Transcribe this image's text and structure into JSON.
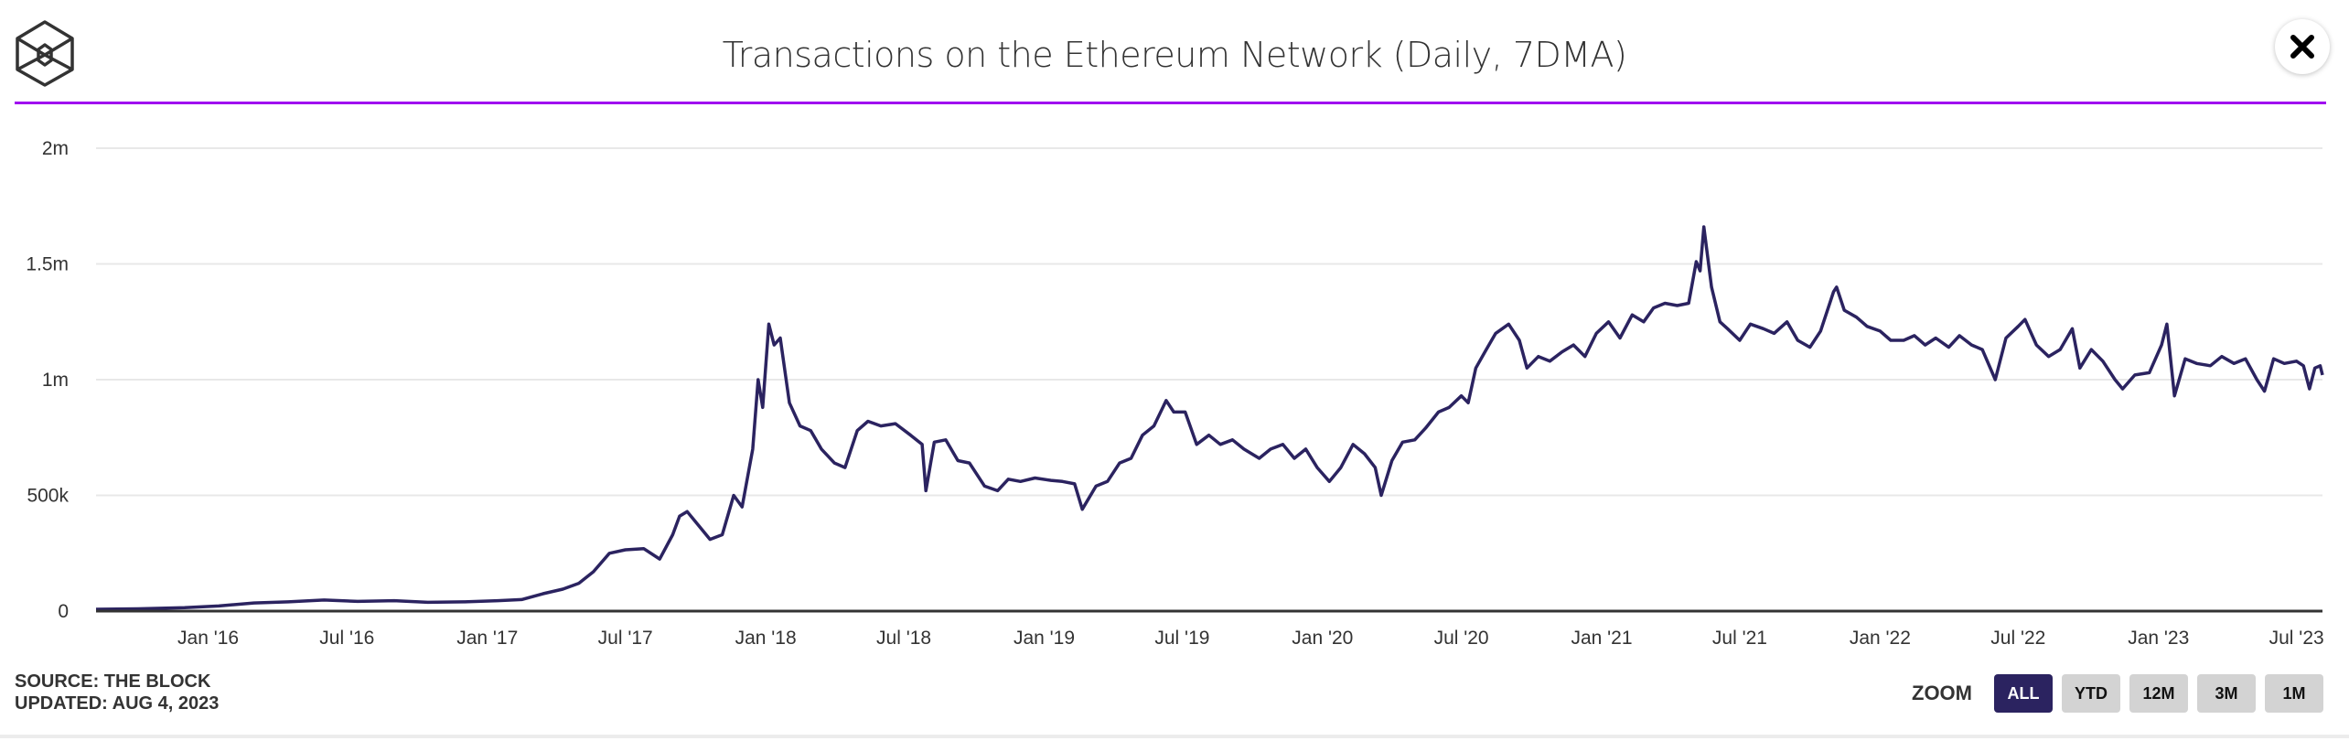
{
  "header": {
    "title": "Transactions on the Ethereum Network (Daily, 7DMA)",
    "close_label": "close"
  },
  "colors": {
    "accent_rule": "#a00ef0",
    "line": "#2b2360",
    "button_active": "#2b2360",
    "button": "#d3d3d3",
    "grid": "#e8e8e8"
  },
  "footer": {
    "source": "SOURCE: THE BLOCK",
    "updated": "UPDATED: AUG 4, 2023"
  },
  "zoom": {
    "label": "ZOOM",
    "buttons": [
      {
        "label": "ALL",
        "active": true
      },
      {
        "label": "YTD",
        "active": false
      },
      {
        "label": "12M",
        "active": false
      },
      {
        "label": "3M",
        "active": false
      },
      {
        "label": "1M",
        "active": false
      }
    ]
  },
  "chart_data": {
    "type": "line",
    "title": "Transactions on the Ethereum Network (Daily, 7DMA)",
    "xlabel": "",
    "ylabel": "",
    "ylim": [
      0,
      2000000
    ],
    "xlim": [
      "2015-08-07",
      "2023-08-04"
    ],
    "y_ticks": [
      {
        "value": 0,
        "label": "0"
      },
      {
        "value": 500000,
        "label": "500k"
      },
      {
        "value": 1000000,
        "label": "1m"
      },
      {
        "value": 1500000,
        "label": "1.5m"
      },
      {
        "value": 2000000,
        "label": "2m"
      }
    ],
    "x_ticks": [
      {
        "date": "2016-01-01",
        "label": "Jan '16"
      },
      {
        "date": "2016-07-01",
        "label": "Jul '16"
      },
      {
        "date": "2017-01-01",
        "label": "Jan '17"
      },
      {
        "date": "2017-07-01",
        "label": "Jul '17"
      },
      {
        "date": "2018-01-01",
        "label": "Jan '18"
      },
      {
        "date": "2018-07-01",
        "label": "Jul '18"
      },
      {
        "date": "2019-01-01",
        "label": "Jan '19"
      },
      {
        "date": "2019-07-01",
        "label": "Jul '19"
      },
      {
        "date": "2020-01-01",
        "label": "Jan '20"
      },
      {
        "date": "2020-07-01",
        "label": "Jul '20"
      },
      {
        "date": "2021-01-01",
        "label": "Jan '21"
      },
      {
        "date": "2021-07-01",
        "label": "Jul '21"
      },
      {
        "date": "2022-01-01",
        "label": "Jan '22"
      },
      {
        "date": "2022-07-01",
        "label": "Jul '22"
      },
      {
        "date": "2023-01-01",
        "label": "Jan '23"
      },
      {
        "date": "2023-07-01",
        "label": "Jul '23"
      }
    ],
    "grid": true,
    "legend": "none",
    "series": [
      {
        "name": "Transactions (7DMA)",
        "points": [
          [
            "2015-08-07",
            8000
          ],
          [
            "2015-10-01",
            10000
          ],
          [
            "2015-12-01",
            15000
          ],
          [
            "2016-01-15",
            22000
          ],
          [
            "2016-03-01",
            35000
          ],
          [
            "2016-04-15",
            40000
          ],
          [
            "2016-06-01",
            48000
          ],
          [
            "2016-07-15",
            42000
          ],
          [
            "2016-09-01",
            45000
          ],
          [
            "2016-10-15",
            38000
          ],
          [
            "2016-12-01",
            40000
          ],
          [
            "2017-01-15",
            45000
          ],
          [
            "2017-02-15",
            50000
          ],
          [
            "2017-03-15",
            75000
          ],
          [
            "2017-04-10",
            95000
          ],
          [
            "2017-05-01",
            120000
          ],
          [
            "2017-05-20",
            170000
          ],
          [
            "2017-06-10",
            250000
          ],
          [
            "2017-07-01",
            265000
          ],
          [
            "2017-07-25",
            270000
          ],
          [
            "2017-08-15",
            225000
          ],
          [
            "2017-09-01",
            330000
          ],
          [
            "2017-09-10",
            410000
          ],
          [
            "2017-09-20",
            430000
          ],
          [
            "2017-10-05",
            370000
          ],
          [
            "2017-10-20",
            310000
          ],
          [
            "2017-11-05",
            330000
          ],
          [
            "2017-11-20",
            500000
          ],
          [
            "2017-12-01",
            450000
          ],
          [
            "2017-12-15",
            700000
          ],
          [
            "2017-12-22",
            1000000
          ],
          [
            "2017-12-28",
            880000
          ],
          [
            "2018-01-05",
            1240000
          ],
          [
            "2018-01-12",
            1150000
          ],
          [
            "2018-01-20",
            1180000
          ],
          [
            "2018-02-01",
            900000
          ],
          [
            "2018-02-15",
            800000
          ],
          [
            "2018-03-01",
            780000
          ],
          [
            "2018-03-15",
            700000
          ],
          [
            "2018-04-01",
            640000
          ],
          [
            "2018-04-15",
            620000
          ],
          [
            "2018-05-01",
            780000
          ],
          [
            "2018-05-15",
            820000
          ],
          [
            "2018-06-01",
            800000
          ],
          [
            "2018-06-20",
            810000
          ],
          [
            "2018-07-10",
            760000
          ],
          [
            "2018-07-25",
            720000
          ],
          [
            "2018-07-30",
            520000
          ],
          [
            "2018-08-10",
            730000
          ],
          [
            "2018-08-25",
            740000
          ],
          [
            "2018-09-10",
            650000
          ],
          [
            "2018-09-25",
            640000
          ],
          [
            "2018-10-15",
            540000
          ],
          [
            "2018-11-01",
            520000
          ],
          [
            "2018-11-15",
            570000
          ],
          [
            "2018-12-01",
            560000
          ],
          [
            "2018-12-20",
            575000
          ],
          [
            "2019-01-10",
            565000
          ],
          [
            "2019-01-25",
            560000
          ],
          [
            "2019-02-10",
            550000
          ],
          [
            "2019-02-20",
            440000
          ],
          [
            "2019-03-10",
            540000
          ],
          [
            "2019-03-25",
            560000
          ],
          [
            "2019-04-10",
            640000
          ],
          [
            "2019-04-25",
            660000
          ],
          [
            "2019-05-10",
            760000
          ],
          [
            "2019-05-25",
            800000
          ],
          [
            "2019-06-10",
            910000
          ],
          [
            "2019-06-20",
            860000
          ],
          [
            "2019-07-05",
            860000
          ],
          [
            "2019-07-20",
            720000
          ],
          [
            "2019-08-05",
            760000
          ],
          [
            "2019-08-20",
            720000
          ],
          [
            "2019-09-05",
            740000
          ],
          [
            "2019-09-20",
            700000
          ],
          [
            "2019-10-10",
            660000
          ],
          [
            "2019-10-25",
            700000
          ],
          [
            "2019-11-10",
            720000
          ],
          [
            "2019-11-25",
            660000
          ],
          [
            "2019-12-10",
            700000
          ],
          [
            "2019-12-25",
            620000
          ],
          [
            "2020-01-10",
            560000
          ],
          [
            "2020-01-25",
            620000
          ],
          [
            "2020-02-10",
            720000
          ],
          [
            "2020-02-25",
            680000
          ],
          [
            "2020-03-10",
            620000
          ],
          [
            "2020-03-18",
            500000
          ],
          [
            "2020-04-01",
            650000
          ],
          [
            "2020-04-15",
            730000
          ],
          [
            "2020-05-01",
            740000
          ],
          [
            "2020-05-15",
            790000
          ],
          [
            "2020-06-01",
            860000
          ],
          [
            "2020-06-15",
            880000
          ],
          [
            "2020-07-01",
            930000
          ],
          [
            "2020-07-10",
            900000
          ],
          [
            "2020-07-20",
            1050000
          ],
          [
            "2020-08-01",
            1120000
          ],
          [
            "2020-08-15",
            1200000
          ],
          [
            "2020-09-01",
            1240000
          ],
          [
            "2020-09-15",
            1170000
          ],
          [
            "2020-09-25",
            1050000
          ],
          [
            "2020-10-10",
            1100000
          ],
          [
            "2020-10-25",
            1080000
          ],
          [
            "2020-11-10",
            1120000
          ],
          [
            "2020-11-25",
            1150000
          ],
          [
            "2020-12-10",
            1100000
          ],
          [
            "2020-12-25",
            1200000
          ],
          [
            "2021-01-10",
            1250000
          ],
          [
            "2021-01-25",
            1180000
          ],
          [
            "2021-02-10",
            1280000
          ],
          [
            "2021-02-25",
            1250000
          ],
          [
            "2021-03-10",
            1310000
          ],
          [
            "2021-03-25",
            1330000
          ],
          [
            "2021-04-10",
            1320000
          ],
          [
            "2021-04-25",
            1330000
          ],
          [
            "2021-05-05",
            1510000
          ],
          [
            "2021-05-10",
            1470000
          ],
          [
            "2021-05-15",
            1660000
          ],
          [
            "2021-05-25",
            1400000
          ],
          [
            "2021-06-05",
            1250000
          ],
          [
            "2021-06-15",
            1220000
          ],
          [
            "2021-07-01",
            1170000
          ],
          [
            "2021-07-15",
            1240000
          ],
          [
            "2021-08-01",
            1220000
          ],
          [
            "2021-08-15",
            1200000
          ],
          [
            "2021-09-01",
            1250000
          ],
          [
            "2021-09-15",
            1170000
          ],
          [
            "2021-10-01",
            1140000
          ],
          [
            "2021-10-15",
            1210000
          ],
          [
            "2021-11-01",
            1380000
          ],
          [
            "2021-11-05",
            1400000
          ],
          [
            "2021-11-15",
            1300000
          ],
          [
            "2021-12-01",
            1270000
          ],
          [
            "2021-12-15",
            1230000
          ],
          [
            "2022-01-01",
            1210000
          ],
          [
            "2022-01-15",
            1170000
          ],
          [
            "2022-02-01",
            1170000
          ],
          [
            "2022-02-15",
            1190000
          ],
          [
            "2022-03-01",
            1150000
          ],
          [
            "2022-03-15",
            1180000
          ],
          [
            "2022-04-01",
            1140000
          ],
          [
            "2022-04-15",
            1190000
          ],
          [
            "2022-05-01",
            1150000
          ],
          [
            "2022-05-15",
            1130000
          ],
          [
            "2022-06-01",
            1000000
          ],
          [
            "2022-06-15",
            1180000
          ],
          [
            "2022-07-01",
            1230000
          ],
          [
            "2022-07-10",
            1260000
          ],
          [
            "2022-07-25",
            1150000
          ],
          [
            "2022-08-10",
            1100000
          ],
          [
            "2022-08-25",
            1130000
          ],
          [
            "2022-09-10",
            1220000
          ],
          [
            "2022-09-20",
            1050000
          ],
          [
            "2022-10-05",
            1130000
          ],
          [
            "2022-10-20",
            1080000
          ],
          [
            "2022-11-05",
            1000000
          ],
          [
            "2022-11-15",
            960000
          ],
          [
            "2022-12-01",
            1020000
          ],
          [
            "2022-12-20",
            1030000
          ],
          [
            "2023-01-05",
            1150000
          ],
          [
            "2023-01-12",
            1240000
          ],
          [
            "2023-01-22",
            930000
          ],
          [
            "2023-02-05",
            1090000
          ],
          [
            "2023-02-20",
            1070000
          ],
          [
            "2023-03-10",
            1060000
          ],
          [
            "2023-03-25",
            1100000
          ],
          [
            "2023-04-10",
            1070000
          ],
          [
            "2023-04-25",
            1090000
          ],
          [
            "2023-05-10",
            1000000
          ],
          [
            "2023-05-20",
            950000
          ],
          [
            "2023-06-01",
            1090000
          ],
          [
            "2023-06-15",
            1070000
          ],
          [
            "2023-07-01",
            1080000
          ],
          [
            "2023-07-10",
            1060000
          ],
          [
            "2023-07-18",
            960000
          ],
          [
            "2023-07-25",
            1050000
          ],
          [
            "2023-08-01",
            1060000
          ],
          [
            "2023-08-04",
            1020000
          ]
        ]
      }
    ]
  }
}
